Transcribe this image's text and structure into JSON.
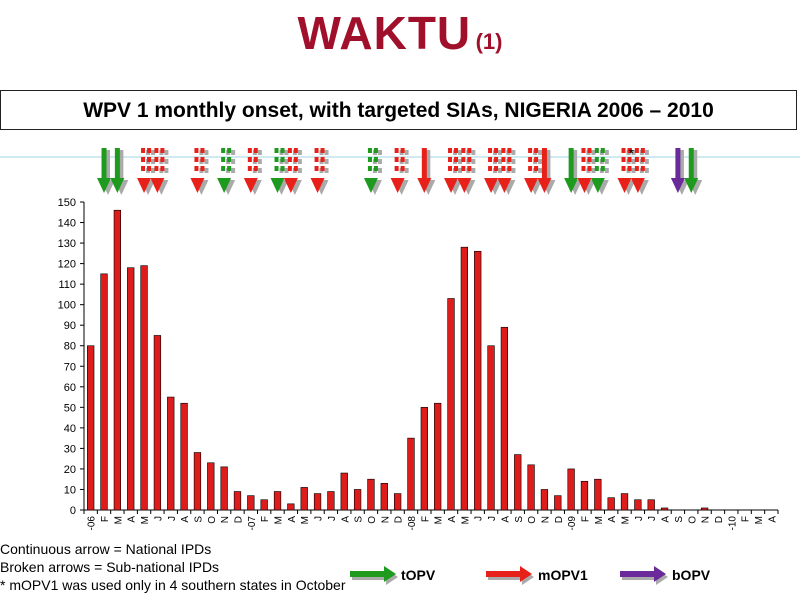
{
  "slide": {
    "title": "WAKTU",
    "title_suffix": "(1)",
    "subtitle": "WPV 1 monthly onset, with targeted SIAs, NIGERIA 2006 – 2010",
    "notes": [
      "Continuous arrow = National IPDs",
      "Broken arrows = Sub-national IPDs",
      "* mOPV1 was used only in 4 southern states in October"
    ],
    "legend": [
      {
        "label": "tOPV",
        "color": "#1e9a1e"
      },
      {
        "label": "mOPV1",
        "color": "#e8201a"
      },
      {
        "label": "bOPV",
        "color": "#6a2a9a"
      }
    ]
  },
  "chart_data": {
    "type": "bar",
    "ylim": [
      0,
      150
    ],
    "yticks": [
      0,
      10,
      20,
      30,
      40,
      50,
      60,
      70,
      80,
      90,
      100,
      110,
      120,
      130,
      140,
      150
    ],
    "bar_color": "#dd1c1c",
    "grid": false,
    "categories": [
      "-06",
      "F",
      "M",
      "A",
      "M",
      "J",
      "J",
      "A",
      "S",
      "O",
      "N",
      "D",
      "-07",
      "F",
      "M",
      "A",
      "M",
      "J",
      "J",
      "A",
      "S",
      "O",
      "N",
      "D",
      "-08",
      "F",
      "M",
      "A",
      "M",
      "J",
      "J",
      "A",
      "S",
      "O",
      "N",
      "D",
      "-09",
      "F",
      "M",
      "A",
      "M",
      "J",
      "J",
      "A",
      "S",
      "O",
      "N",
      "D",
      "-10",
      "F",
      "M",
      "A"
    ],
    "values": [
      80,
      115,
      146,
      118,
      119,
      85,
      55,
      52,
      28,
      23,
      21,
      9,
      7,
      5,
      9,
      3,
      11,
      8,
      9,
      18,
      10,
      15,
      13,
      8,
      35,
      50,
      52,
      103,
      128,
      126,
      80,
      89,
      27,
      22,
      10,
      7,
      20,
      14,
      15,
      6,
      8,
      5,
      5,
      1,
      0,
      0,
      1,
      0,
      0,
      0,
      0,
      0
    ],
    "sia_arrows": [
      {
        "month": 1,
        "type": "tOPV",
        "style": "solid"
      },
      {
        "month": 2,
        "type": "tOPV",
        "style": "solid"
      },
      {
        "month": 4,
        "type": "mOPV1",
        "style": "broken"
      },
      {
        "month": 5,
        "type": "mOPV1",
        "style": "broken"
      },
      {
        "month": 8,
        "type": "mOPV1",
        "style": "broken"
      },
      {
        "month": 10,
        "type": "tOPV",
        "style": "broken"
      },
      {
        "month": 12,
        "type": "mOPV1",
        "style": "broken"
      },
      {
        "month": 14,
        "type": "tOPV",
        "style": "broken"
      },
      {
        "month": 15,
        "type": "mOPV1",
        "style": "broken"
      },
      {
        "month": 17,
        "type": "mOPV1",
        "style": "broken"
      },
      {
        "month": 21,
        "type": "tOPV",
        "style": "broken"
      },
      {
        "month": 23,
        "type": "mOPV1",
        "style": "broken"
      },
      {
        "month": 25,
        "type": "mOPV1",
        "style": "solid"
      },
      {
        "month": 27,
        "type": "mOPV1",
        "style": "broken"
      },
      {
        "month": 28,
        "type": "mOPV1",
        "style": "broken"
      },
      {
        "month": 30,
        "type": "mOPV1",
        "style": "broken"
      },
      {
        "month": 31,
        "type": "mOPV1",
        "style": "broken"
      },
      {
        "month": 33,
        "type": "mOPV1",
        "style": "broken"
      },
      {
        "month": 34,
        "type": "mOPV1",
        "style": "solid"
      },
      {
        "month": 36,
        "type": "tOPV",
        "style": "solid"
      },
      {
        "month": 37,
        "type": "mOPV1",
        "style": "broken"
      },
      {
        "month": 38,
        "type": "tOPV",
        "style": "broken"
      },
      {
        "month": 40,
        "type": "mOPV1",
        "style": "broken"
      },
      {
        "month": 41,
        "type": "mOPV1",
        "style": "broken"
      },
      {
        "month": 44,
        "type": "bOPV",
        "style": "solid"
      },
      {
        "month": 45,
        "type": "tOPV",
        "style": "solid"
      }
    ],
    "asterisk_month": 40,
    "asterisk_label": "*"
  }
}
